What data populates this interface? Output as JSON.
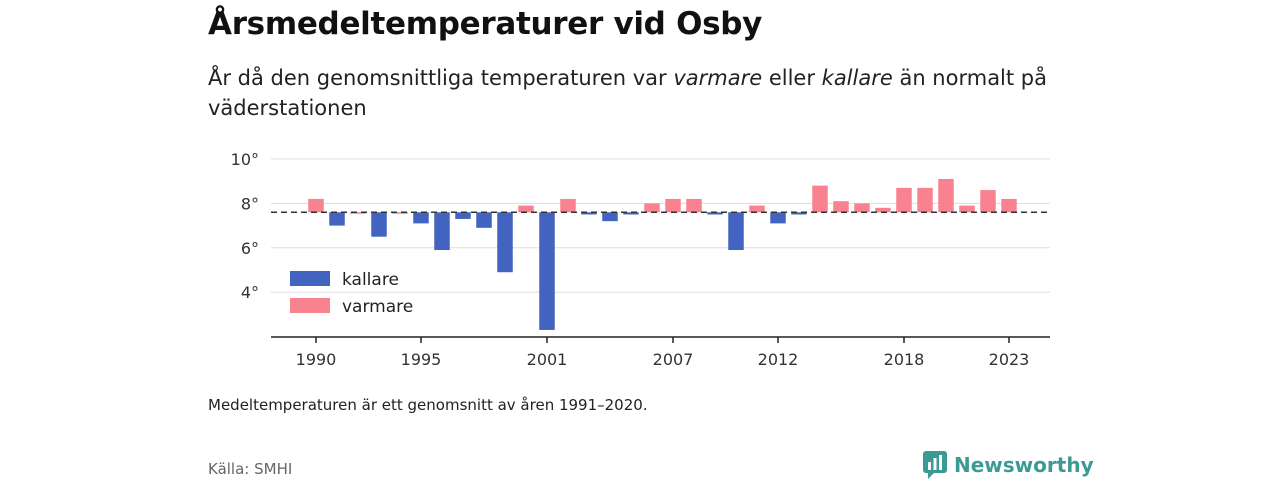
{
  "title": "Årsmedeltemperaturer vid Osby",
  "subtitle": {
    "part1": "År då den genomsnittliga temperaturen var ",
    "warm": "varmare",
    "part2": " eller ",
    "cold": "kallare",
    "part3": " än normalt på väderstationen"
  },
  "note": "Medeltemperaturen är ett genomsnitt av åren 1991–2020.",
  "source": "Källa: SMHI",
  "brand": {
    "name": "Newsworthy",
    "icon": "newsworthy-logo-icon",
    "color": "#3b9b94"
  },
  "colors": {
    "cold": "#4263c0",
    "warm": "#f8828f",
    "grid": "#dddddd",
    "axis": "#222222",
    "reference": "#333333"
  },
  "chart_data": {
    "type": "bar",
    "x": [
      1990,
      1991,
      1992,
      1993,
      1994,
      1995,
      1996,
      1997,
      1998,
      1999,
      2000,
      2001,
      2002,
      2003,
      2004,
      2005,
      2006,
      2007,
      2008,
      2009,
      2010,
      2011,
      2012,
      2013,
      2014,
      2015,
      2016,
      2017,
      2018,
      2019,
      2020,
      2021,
      2022,
      2023
    ],
    "values": [
      8.2,
      7.0,
      7.6,
      6.5,
      7.6,
      7.1,
      5.9,
      7.3,
      6.9,
      4.9,
      7.9,
      2.3,
      8.2,
      7.5,
      7.2,
      7.5,
      8.0,
      8.2,
      8.2,
      7.5,
      5.9,
      7.9,
      7.1,
      7.5,
      8.8,
      8.1,
      8.0,
      7.8,
      8.7,
      8.7,
      9.1,
      7.9,
      8.6,
      8.2
    ],
    "baseline": 7.6,
    "ylim": [
      2,
      10.5
    ],
    "yticks": [
      {
        "v": 4,
        "label": "4°"
      },
      {
        "v": 6,
        "label": "6°"
      },
      {
        "v": 8,
        "label": "8°"
      },
      {
        "v": 10,
        "label": "10°"
      }
    ],
    "xticks": [
      1990,
      1995,
      2001,
      2007,
      2012,
      2018,
      2023
    ],
    "legend": {
      "cold": "kallare",
      "warm": "varmare",
      "position": "bottom-left"
    },
    "grid": true
  }
}
